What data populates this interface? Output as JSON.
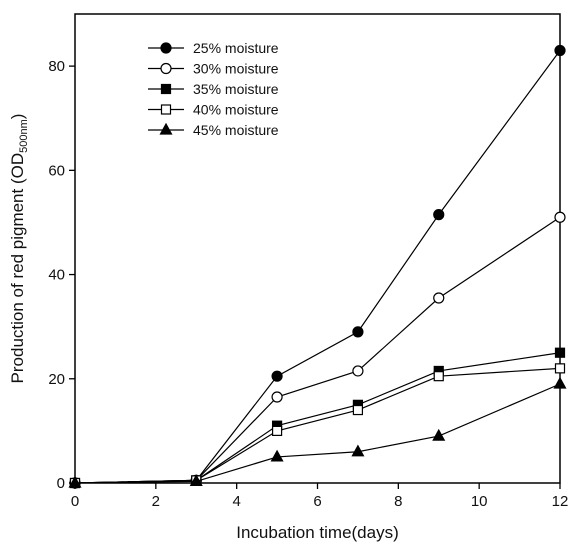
{
  "chart_data": {
    "type": "line",
    "title": "",
    "xlabel": "Incubation time(days)",
    "ylabel": {
      "main": "Production of red pigment (OD",
      "subscript": "500nm",
      "closing": ")"
    },
    "xlim": [
      0,
      12
    ],
    "ylim": [
      0,
      90
    ],
    "xticks": [
      0,
      2,
      4,
      6,
      8,
      10,
      12
    ],
    "yticks": [
      0,
      20,
      40,
      60,
      80
    ],
    "grid": false,
    "legend_position": "top-left",
    "x": [
      0,
      3,
      5,
      7,
      9,
      12
    ],
    "series": [
      {
        "name": "25% moisture",
        "marker": "circle-filled",
        "values": [
          0,
          0.5,
          20.5,
          29,
          51.5,
          83
        ]
      },
      {
        "name": "30% moisture",
        "marker": "circle-open",
        "values": [
          0,
          0.5,
          16.5,
          21.5,
          35.5,
          51
        ]
      },
      {
        "name": "35% moisture",
        "marker": "square-filled",
        "values": [
          0,
          0.5,
          11,
          15,
          21.5,
          25
        ]
      },
      {
        "name": "40% moisture",
        "marker": "square-open",
        "values": [
          0,
          0.5,
          10,
          14,
          20.5,
          22
        ]
      },
      {
        "name": "45% moisture",
        "marker": "triangle-filled",
        "values": [
          0,
          0.3,
          5,
          6,
          9,
          19
        ]
      }
    ]
  }
}
